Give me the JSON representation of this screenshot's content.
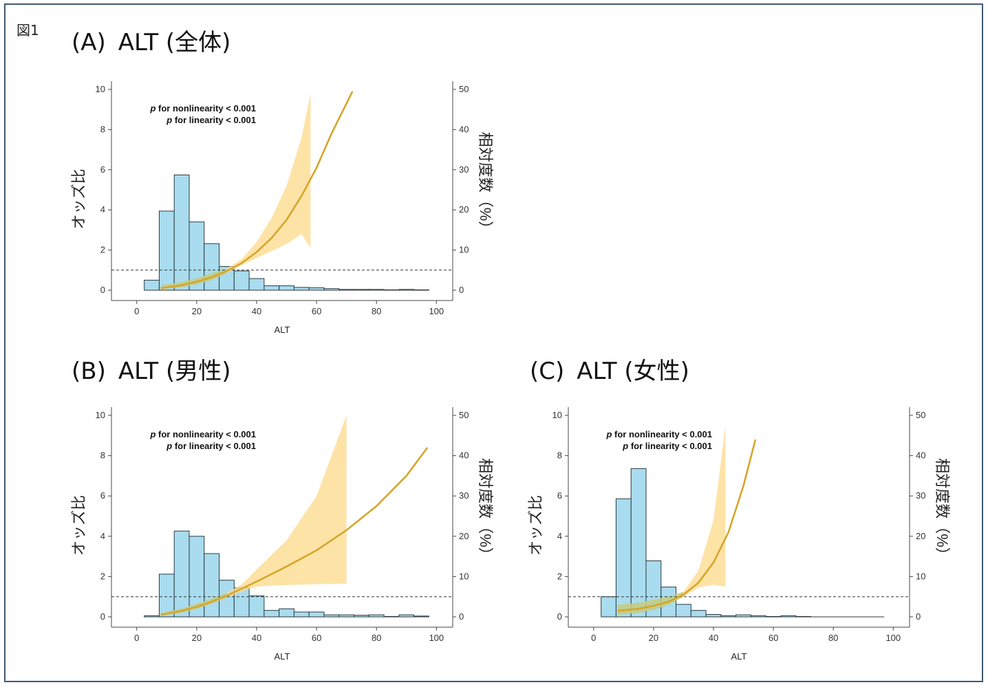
{
  "figure": {
    "label": "図1"
  },
  "colors": {
    "bar_fill": "#a9dcee",
    "bar_stroke": "#2b3a44",
    "curve": "#d6a52a",
    "band": "#fdd98a",
    "overlap": "#9ec57d"
  },
  "chart_data": [
    {
      "id": "A",
      "title_prefix": "(A)",
      "title": "ALT (全体)",
      "type": "bar+line",
      "xlabel": "ALT",
      "ylabel_left": "オッズ比",
      "ylabel_right": "相対度数（%）",
      "xlim": [
        -5,
        102
      ],
      "ylim_left": [
        0,
        10
      ],
      "ylim_right": [
        0,
        50
      ],
      "x_ticks": [
        0,
        20,
        40,
        60,
        80,
        100
      ],
      "y_ticks_left": [
        0,
        2,
        4,
        6,
        8,
        10
      ],
      "y_ticks_right": [
        0,
        10,
        20,
        30,
        40,
        50
      ],
      "reference_line_or": 1,
      "annotation": {
        "p_symbol": "p",
        "line1": " for nonlinearity < 0.001",
        "line2": " for linearity < 0.001"
      },
      "histogram": {
        "bin_width": 5,
        "bin_starts": [
          2.5,
          7.5,
          12.5,
          17.5,
          22.5,
          27.5,
          32.5,
          37.5,
          42.5,
          47.5,
          52.5,
          57.5,
          62.5,
          67.5,
          72.5,
          77.5,
          82.5,
          87.5,
          92.5
        ],
        "percent": [
          2.5,
          19.7,
          28.7,
          17.0,
          11.6,
          5.9,
          4.8,
          2.9,
          1.1,
          1.1,
          0.7,
          0.6,
          0.4,
          0.2,
          0.2,
          0.2,
          0.1,
          0.2,
          0.1
        ]
      },
      "odds_ratio_curve": {
        "x": [
          8,
          15,
          20,
          25,
          30,
          35,
          40,
          45,
          50,
          55,
          60,
          65,
          72
        ],
        "or": [
          0.1,
          0.25,
          0.42,
          0.65,
          0.95,
          1.35,
          1.9,
          2.6,
          3.5,
          4.7,
          6.1,
          7.8,
          9.9
        ],
        "ci_x": [
          8,
          15,
          20,
          25,
          30,
          35,
          40,
          45,
          50,
          55,
          58
        ],
        "ci_lower": [
          0.05,
          0.15,
          0.3,
          0.5,
          0.85,
          1.25,
          1.6,
          1.95,
          2.3,
          2.8,
          2.1
        ],
        "ci_upper": [
          0.25,
          0.4,
          0.6,
          0.85,
          1.08,
          1.55,
          2.4,
          3.6,
          5.2,
          7.6,
          9.8
        ]
      }
    },
    {
      "id": "B",
      "title_prefix": "(B)",
      "title": "ALT (男性)",
      "type": "bar+line",
      "xlabel": "ALT",
      "ylabel_left": "オッズ比",
      "ylabel_right": "相対度数（%）",
      "xlim": [
        -5,
        102
      ],
      "ylim_left": [
        0,
        10
      ],
      "ylim_right": [
        0,
        50
      ],
      "x_ticks": [
        0,
        20,
        40,
        60,
        80,
        100
      ],
      "y_ticks_left": [
        0,
        2,
        4,
        6,
        8,
        10
      ],
      "y_ticks_right": [
        0,
        10,
        20,
        30,
        40,
        50
      ],
      "reference_line_or": 1,
      "annotation": {
        "p_symbol": "p",
        "line1": " for nonlinearity < 0.001",
        "line2": " for linearity < 0.001"
      },
      "histogram": {
        "bin_width": 5,
        "bin_starts": [
          2.5,
          7.5,
          12.5,
          17.5,
          22.5,
          27.5,
          32.5,
          37.5,
          42.5,
          47.5,
          52.5,
          57.5,
          62.5,
          67.5,
          72.5,
          77.5,
          82.5,
          87.5,
          92.5
        ],
        "percent": [
          0.3,
          10.6,
          21.3,
          20.0,
          15.7,
          9.1,
          7.2,
          5.2,
          1.6,
          2.0,
          1.2,
          1.2,
          0.5,
          0.5,
          0.4,
          0.5,
          0.1,
          0.5,
          0.2
        ]
      },
      "odds_ratio_curve": {
        "x": [
          8,
          15,
          20,
          25,
          30,
          35,
          40,
          50,
          60,
          70,
          80,
          90,
          97
        ],
        "or": [
          0.1,
          0.3,
          0.5,
          0.75,
          1.05,
          1.4,
          1.75,
          2.5,
          3.3,
          4.3,
          5.5,
          7.0,
          8.4
        ],
        "ci_x": [
          8,
          15,
          20,
          25,
          30,
          35,
          40,
          50,
          60,
          70
        ],
        "ci_lower": [
          0.05,
          0.2,
          0.4,
          0.65,
          0.95,
          1.25,
          1.5,
          1.58,
          1.62,
          1.65
        ],
        "ci_upper": [
          0.2,
          0.4,
          0.65,
          0.9,
          1.2,
          1.6,
          2.35,
          3.8,
          6.0,
          10.0
        ]
      }
    },
    {
      "id": "C",
      "title_prefix": "(C)",
      "title": "ALT (女性)",
      "type": "bar+line",
      "xlabel": "ALT",
      "ylabel_left": "オッズ比",
      "ylabel_right": "相対度数（%）",
      "xlim": [
        -5,
        102
      ],
      "ylim_left": [
        0,
        10
      ],
      "ylim_right": [
        0,
        50
      ],
      "x_ticks": [
        0,
        20,
        40,
        60,
        80,
        100
      ],
      "y_ticks_left": [
        0,
        2,
        4,
        6,
        8,
        10
      ],
      "y_ticks_right": [
        0,
        10,
        20,
        30,
        40,
        50
      ],
      "reference_line_or": 1,
      "annotation": {
        "p_symbol": "p",
        "line1": " for nonlinearity < 0.001",
        "line2": " for linearity < 0.001"
      },
      "histogram": {
        "bin_width": 5,
        "bin_starts": [
          2.5,
          7.5,
          12.5,
          17.5,
          22.5,
          27.5,
          32.5,
          37.5,
          42.5,
          47.5,
          52.5,
          57.5,
          62.5,
          67.5,
          72.5,
          77.5,
          82.5,
          87.5,
          92.5
        ],
        "percent": [
          5.0,
          29.3,
          36.8,
          13.9,
          7.4,
          3.1,
          1.6,
          0.6,
          0.3,
          0.5,
          0.3,
          0.1,
          0.3,
          0.1,
          0.0,
          0.0,
          0.0,
          0.0,
          0.0
        ]
      },
      "odds_ratio_curve": {
        "x": [
          8,
          15,
          20,
          25,
          30,
          35,
          40,
          45,
          50,
          54
        ],
        "or": [
          0.3,
          0.4,
          0.55,
          0.75,
          1.1,
          1.7,
          2.7,
          4.2,
          6.5,
          8.8
        ],
        "ci_x": [
          8,
          15,
          20,
          25,
          30,
          35,
          40,
          44
        ],
        "ci_lower": [
          0.1,
          0.2,
          0.35,
          0.6,
          1.0,
          1.45,
          1.6,
          1.5
        ],
        "ci_upper": [
          0.6,
          0.7,
          0.85,
          1.0,
          1.25,
          2.3,
          4.8,
          9.5
        ]
      }
    }
  ]
}
